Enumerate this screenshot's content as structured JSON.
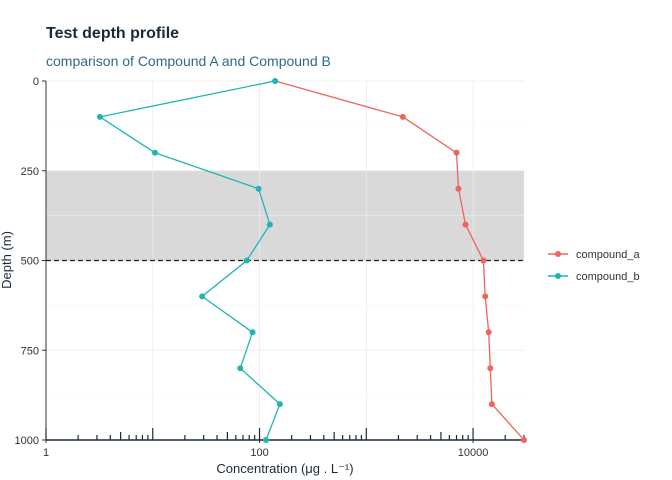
{
  "chart_data": {
    "type": "line",
    "title": "Test depth profile",
    "subtitle": "comparison of Compound A and Compound B",
    "xlabel": "Concentration (μg . L⁻¹)",
    "ylabel": "Depth (m)",
    "x_scale": "log",
    "xlim": [
      1,
      30000
    ],
    "ylim": [
      1000,
      0
    ],
    "x_ticks": [
      1,
      100,
      10000
    ],
    "x_tick_labels": [
      "1",
      "100",
      "10000"
    ],
    "y_ticks": [
      0,
      250,
      500,
      750,
      1000
    ],
    "y_tick_labels": [
      "0",
      "250",
      "500",
      "750",
      "1000"
    ],
    "grid": true,
    "legend_position": "right",
    "shaded_band": {
      "y_from": 250,
      "y_to": 500,
      "color": "#d9d9d9"
    },
    "reference_line": {
      "y": 500,
      "style": "dashed",
      "color": "#222222"
    },
    "series": [
      {
        "name": "compound_a",
        "color": "#f0635c",
        "points": [
          {
            "x": 140,
            "y": 0
          },
          {
            "x": 2200,
            "y": 100
          },
          {
            "x": 7000,
            "y": 200
          },
          {
            "x": 7300,
            "y": 300
          },
          {
            "x": 8500,
            "y": 400
          },
          {
            "x": 12500,
            "y": 500
          },
          {
            "x": 13000,
            "y": 600
          },
          {
            "x": 14000,
            "y": 700
          },
          {
            "x": 14500,
            "y": 800
          },
          {
            "x": 15000,
            "y": 900
          },
          {
            "x": 30000,
            "y": 1000
          }
        ]
      },
      {
        "name": "compound_b",
        "color": "#1fb5b7",
        "points": [
          {
            "x": 140,
            "y": 0
          },
          {
            "x": 3.2,
            "y": 100
          },
          {
            "x": 10.5,
            "y": 200
          },
          {
            "x": 98,
            "y": 300
          },
          {
            "x": 125,
            "y": 400
          },
          {
            "x": 76,
            "y": 500
          },
          {
            "x": 29,
            "y": 600
          },
          {
            "x": 86,
            "y": 700
          },
          {
            "x": 66,
            "y": 800
          },
          {
            "x": 155,
            "y": 900
          },
          {
            "x": 115,
            "y": 1000
          }
        ]
      }
    ]
  }
}
